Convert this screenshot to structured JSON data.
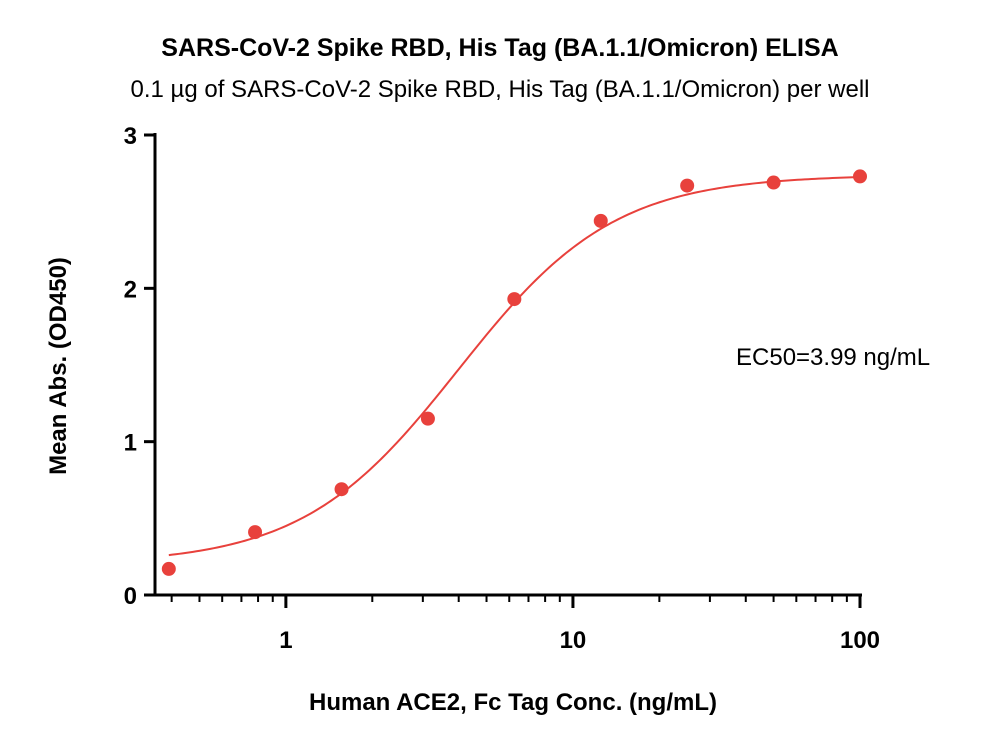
{
  "title": "SARS-CoV-2 Spike RBD, His Tag (BA.1.1/Omicron) ELISA",
  "subtitle": "0.1 µg of SARS-CoV-2 Spike RBD, His Tag (BA.1.1/Omicron) per well",
  "chart_data": {
    "type": "scatter",
    "xlabel": "Human ACE2, Fc Tag Conc. (ng/mL)",
    "ylabel": "Mean Abs. (OD450)",
    "xscale": "log",
    "xlim": [
      0.35,
      100
    ],
    "ylim": [
      0,
      3
    ],
    "xticks": [
      1,
      10,
      100
    ],
    "xtick_labels": [
      "1",
      "10",
      "100"
    ],
    "yticks": [
      0,
      1,
      2,
      3
    ],
    "ytick_labels": [
      "0",
      "1",
      "2",
      "3"
    ],
    "grid": false,
    "color": "#e8413c",
    "series": [
      {
        "x": [
          0.391,
          0.781,
          1.563,
          3.125,
          6.25,
          12.5,
          25,
          50,
          100
        ],
        "y": [
          0.17,
          0.41,
          0.69,
          1.15,
          1.93,
          2.44,
          2.67,
          2.69,
          2.73
        ]
      }
    ],
    "fit": {
      "model": "4PL",
      "bottom": 0.2,
      "top": 2.74,
      "ec50": 3.99,
      "hill": 1.6
    },
    "annotation": "EC50=3.99 ng/mL"
  }
}
